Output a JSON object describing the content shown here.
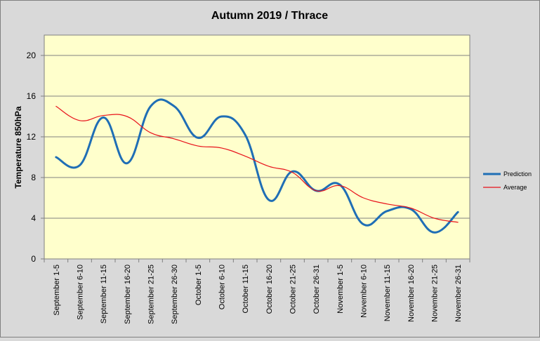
{
  "chart_data": {
    "type": "line",
    "title": "Autumn 2019 / Thrace",
    "xlabel": "",
    "ylabel": "Temperature 850hPa",
    "ylim": [
      0,
      22
    ],
    "yticks": [
      0,
      4,
      8,
      12,
      16,
      20
    ],
    "grid": true,
    "legend_position": "right",
    "plot_background": "#ffffcc",
    "page_background": "#d9d9d9",
    "categories": [
      "September 1-5",
      "September 6-10",
      "September 11-15",
      "September 16-20",
      "September 21-25",
      "September 26-30",
      "October 1-5",
      "October 6-10",
      "October 11-15",
      "October 16-20",
      "October 21-25",
      "October 26-31",
      "November 1-5",
      "November 6-10",
      "November 11-15",
      "November 16-20",
      "November 21-25",
      "November 26-31"
    ],
    "series": [
      {
        "name": "Prediction",
        "color": "#1f6eb5",
        "values": [
          10,
          9.2,
          13.9,
          9.4,
          15,
          15,
          11.9,
          14,
          12.2,
          5.8,
          8.6,
          6.7,
          7.3,
          3.4,
          4.7,
          4.9,
          2.6,
          4.6
        ]
      },
      {
        "name": "Average",
        "color": "#e8121b",
        "values": [
          15,
          13.6,
          14.1,
          14,
          12.4,
          11.8,
          11.1,
          10.9,
          10.1,
          9.1,
          8.5,
          6.7,
          7.2,
          6,
          5.4,
          5,
          4,
          3.6
        ]
      }
    ]
  }
}
